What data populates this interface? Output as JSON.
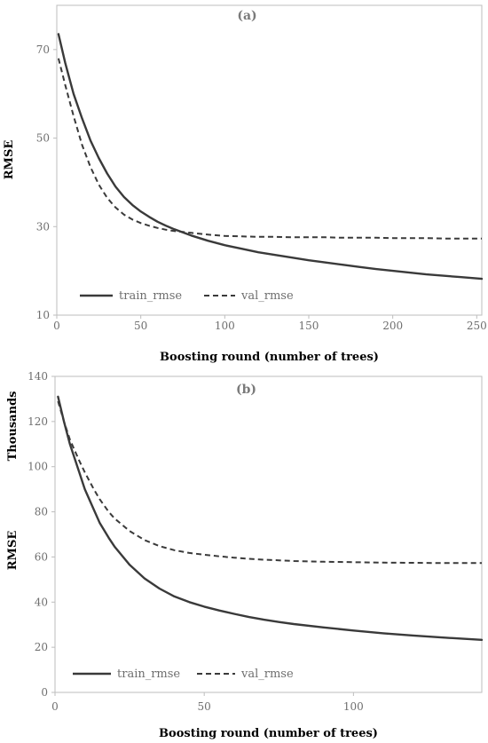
{
  "chart_data": [
    {
      "type": "line",
      "title": "(a)",
      "xlabel": "Boosting round (number of trees)",
      "ylabel": "RMSE",
      "xlim": [
        0,
        253
      ],
      "ylim": [
        10,
        80
      ],
      "xticks": [
        "0",
        "50",
        "100",
        "150",
        "200",
        "250"
      ],
      "yticks": [
        "10",
        "30",
        "50",
        "70"
      ],
      "grid": false,
      "legend": "bottom-left",
      "series": [
        {
          "name": "train_rmse",
          "style": "solid",
          "color": "#3a3a3a",
          "x": [
            1,
            5,
            10,
            15,
            20,
            25,
            30,
            35,
            40,
            45,
            50,
            55,
            60,
            65,
            70,
            75,
            80,
            90,
            100,
            110,
            120,
            130,
            140,
            150,
            160,
            170,
            180,
            190,
            200,
            210,
            220,
            230,
            240,
            253
          ],
          "y": [
            73.5,
            67,
            60,
            54.5,
            49.5,
            45.5,
            42,
            39,
            36.7,
            34.9,
            33.4,
            32.2,
            31.1,
            30.2,
            29.4,
            28.7,
            28,
            26.8,
            25.8,
            25,
            24.2,
            23.6,
            23,
            22.4,
            21.9,
            21.4,
            20.9,
            20.4,
            20,
            19.6,
            19.2,
            18.9,
            18.6,
            18.2
          ]
        },
        {
          "name": "val_rmse",
          "style": "dashed",
          "color": "#3a3a3a",
          "x": [
            1,
            5,
            10,
            15,
            20,
            25,
            30,
            35,
            40,
            45,
            50,
            55,
            60,
            65,
            70,
            75,
            80,
            90,
            100,
            110,
            120,
            130,
            140,
            150,
            160,
            170,
            180,
            190,
            200,
            210,
            220,
            230,
            240,
            253
          ],
          "y": [
            68,
            62,
            55,
            48.5,
            43.5,
            39.5,
            36.5,
            34.3,
            32.7,
            31.6,
            30.8,
            30.2,
            29.7,
            29.3,
            29,
            28.8,
            28.6,
            28.2,
            27.9,
            27.8,
            27.7,
            27.7,
            27.6,
            27.6,
            27.6,
            27.5,
            27.5,
            27.5,
            27.4,
            27.4,
            27.4,
            27.3,
            27.3,
            27.3
          ]
        }
      ]
    },
    {
      "type": "line",
      "title": "(b)",
      "xlabel": "Boosting round (number of trees)",
      "ylabel": "RMSE",
      "ylabel2": "Thousands",
      "xlim": [
        0,
        143
      ],
      "ylim": [
        0,
        140
      ],
      "xticks": [
        "0",
        "50",
        "100"
      ],
      "yticks": [
        "0",
        "20",
        "40",
        "60",
        "80",
        "100",
        "120",
        "140"
      ],
      "grid": false,
      "legend": "bottom-left",
      "series": [
        {
          "name": "train_rmse",
          "style": "solid",
          "color": "#3a3a3a",
          "x": [
            1,
            3,
            5,
            8,
            10,
            13,
            15,
            18,
            20,
            25,
            30,
            35,
            40,
            45,
            50,
            55,
            60,
            65,
            70,
            75,
            80,
            90,
            100,
            110,
            120,
            130,
            143
          ],
          "y": [
            131,
            120,
            110,
            98,
            90,
            81,
            75,
            68.5,
            64.5,
            56.5,
            50.5,
            46,
            42.5,
            40,
            38,
            36.3,
            34.8,
            33.4,
            32.2,
            31.2,
            30.3,
            28.8,
            27.4,
            26.2,
            25.2,
            24.3,
            23.3
          ]
        },
        {
          "name": "val_rmse",
          "style": "dashed",
          "color": "#3a3a3a",
          "x": [
            1,
            3,
            5,
            8,
            10,
            13,
            15,
            18,
            20,
            25,
            30,
            35,
            40,
            45,
            50,
            55,
            60,
            65,
            70,
            75,
            80,
            90,
            100,
            110,
            120,
            130,
            143
          ],
          "y": [
            129,
            120,
            112,
            103,
            97.5,
            90,
            85.5,
            80,
            77,
            71.5,
            67.5,
            64.8,
            63,
            61.8,
            61,
            60.3,
            59.7,
            59.2,
            58.8,
            58.5,
            58.2,
            57.9,
            57.7,
            57.5,
            57.4,
            57.3,
            57.3
          ]
        }
      ]
    }
  ]
}
